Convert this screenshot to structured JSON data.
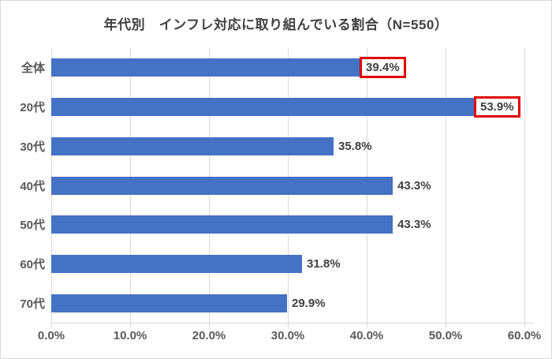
{
  "chart_data": {
    "type": "bar",
    "orientation": "horizontal",
    "title": "年代別　インフレ対応に取り組んでいる割合（N=550）",
    "categories": [
      "全体",
      "20代",
      "30代",
      "40代",
      "50代",
      "60代",
      "70代"
    ],
    "values": [
      39.4,
      53.9,
      35.8,
      43.3,
      43.3,
      31.8,
      29.9
    ],
    "data_labels": [
      "39.4%",
      "53.9%",
      "35.8%",
      "43.3%",
      "43.3%",
      "31.8%",
      "29.9%"
    ],
    "highlighted": [
      true,
      true,
      false,
      false,
      false,
      false,
      false
    ],
    "xlabel": "",
    "ylabel": "",
    "xlim": [
      0,
      60
    ],
    "x_tick_values": [
      0,
      10,
      20,
      30,
      40,
      50,
      60
    ],
    "x_tick_labels": [
      "0.0%",
      "10.0%",
      "20.0%",
      "30.0%",
      "40.0%",
      "50.0%",
      "60.0%"
    ],
    "grid": true,
    "legend": "none",
    "colors": {
      "bar": "#4472C4",
      "grid": "#D9D9D9",
      "axis_line": "#D9D9D9",
      "title_text": "#404040",
      "data_label_text": "#404040",
      "tick_text": "#595959",
      "category_text": "#595959",
      "highlight_border": "#E00000",
      "frame_border": "#D9D9D9",
      "background": "#FFFFFF"
    }
  }
}
